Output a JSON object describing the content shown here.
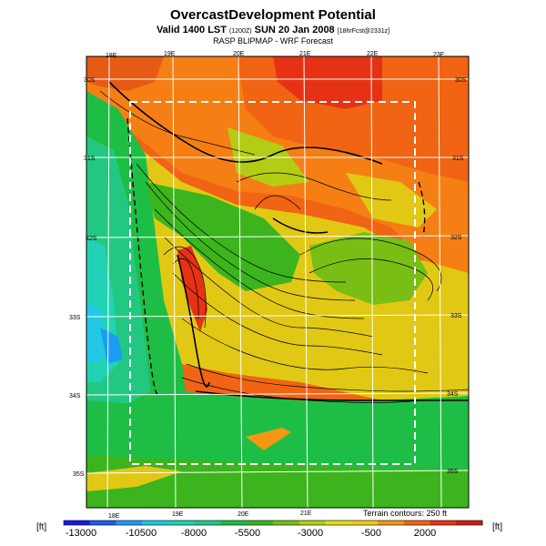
{
  "header": {
    "title": "OvercastDevelopment Potential",
    "valid_prefix": "Valid 1400 LST",
    "valid_utc": "(1200Z)",
    "valid_date": "SUN 20 Jan 2008",
    "forecast_tag": "[18hrFcst@2331z]",
    "subtitle": "RASP BLIPMAP - WRF Forecast"
  },
  "map": {
    "lon_labels_top": [
      "18E",
      "19E",
      "20E",
      "21E",
      "22E",
      "23E"
    ],
    "lon_labels_bottom": [
      "18E",
      "19E",
      "20E",
      "21E"
    ],
    "lat_labels_left": [
      "30S",
      "31S",
      "32S",
      "33S",
      "34S",
      "35S"
    ],
    "lat_labels_right": [
      "30S",
      "31S",
      "32S",
      "33S",
      "34S",
      "35S"
    ],
    "terrain_note": "Terrain contours: 250 ft"
  },
  "colorbar": {
    "unit_left": "[ft]",
    "unit_right": "[ft]",
    "ticks": [
      "-13000",
      "-10500",
      "-8000",
      "-5500",
      "-3000",
      "-500",
      "2000"
    ],
    "colors": [
      "#1a1ae6",
      "#1e5ff0",
      "#1e9bf5",
      "#22c8e6",
      "#22d2b4",
      "#22c882",
      "#1ebe46",
      "#3cb41e",
      "#78be14",
      "#b4cd14",
      "#e1dc14",
      "#f5c814",
      "#f59614",
      "#f06414",
      "#e63214",
      "#c81e14"
    ]
  }
}
